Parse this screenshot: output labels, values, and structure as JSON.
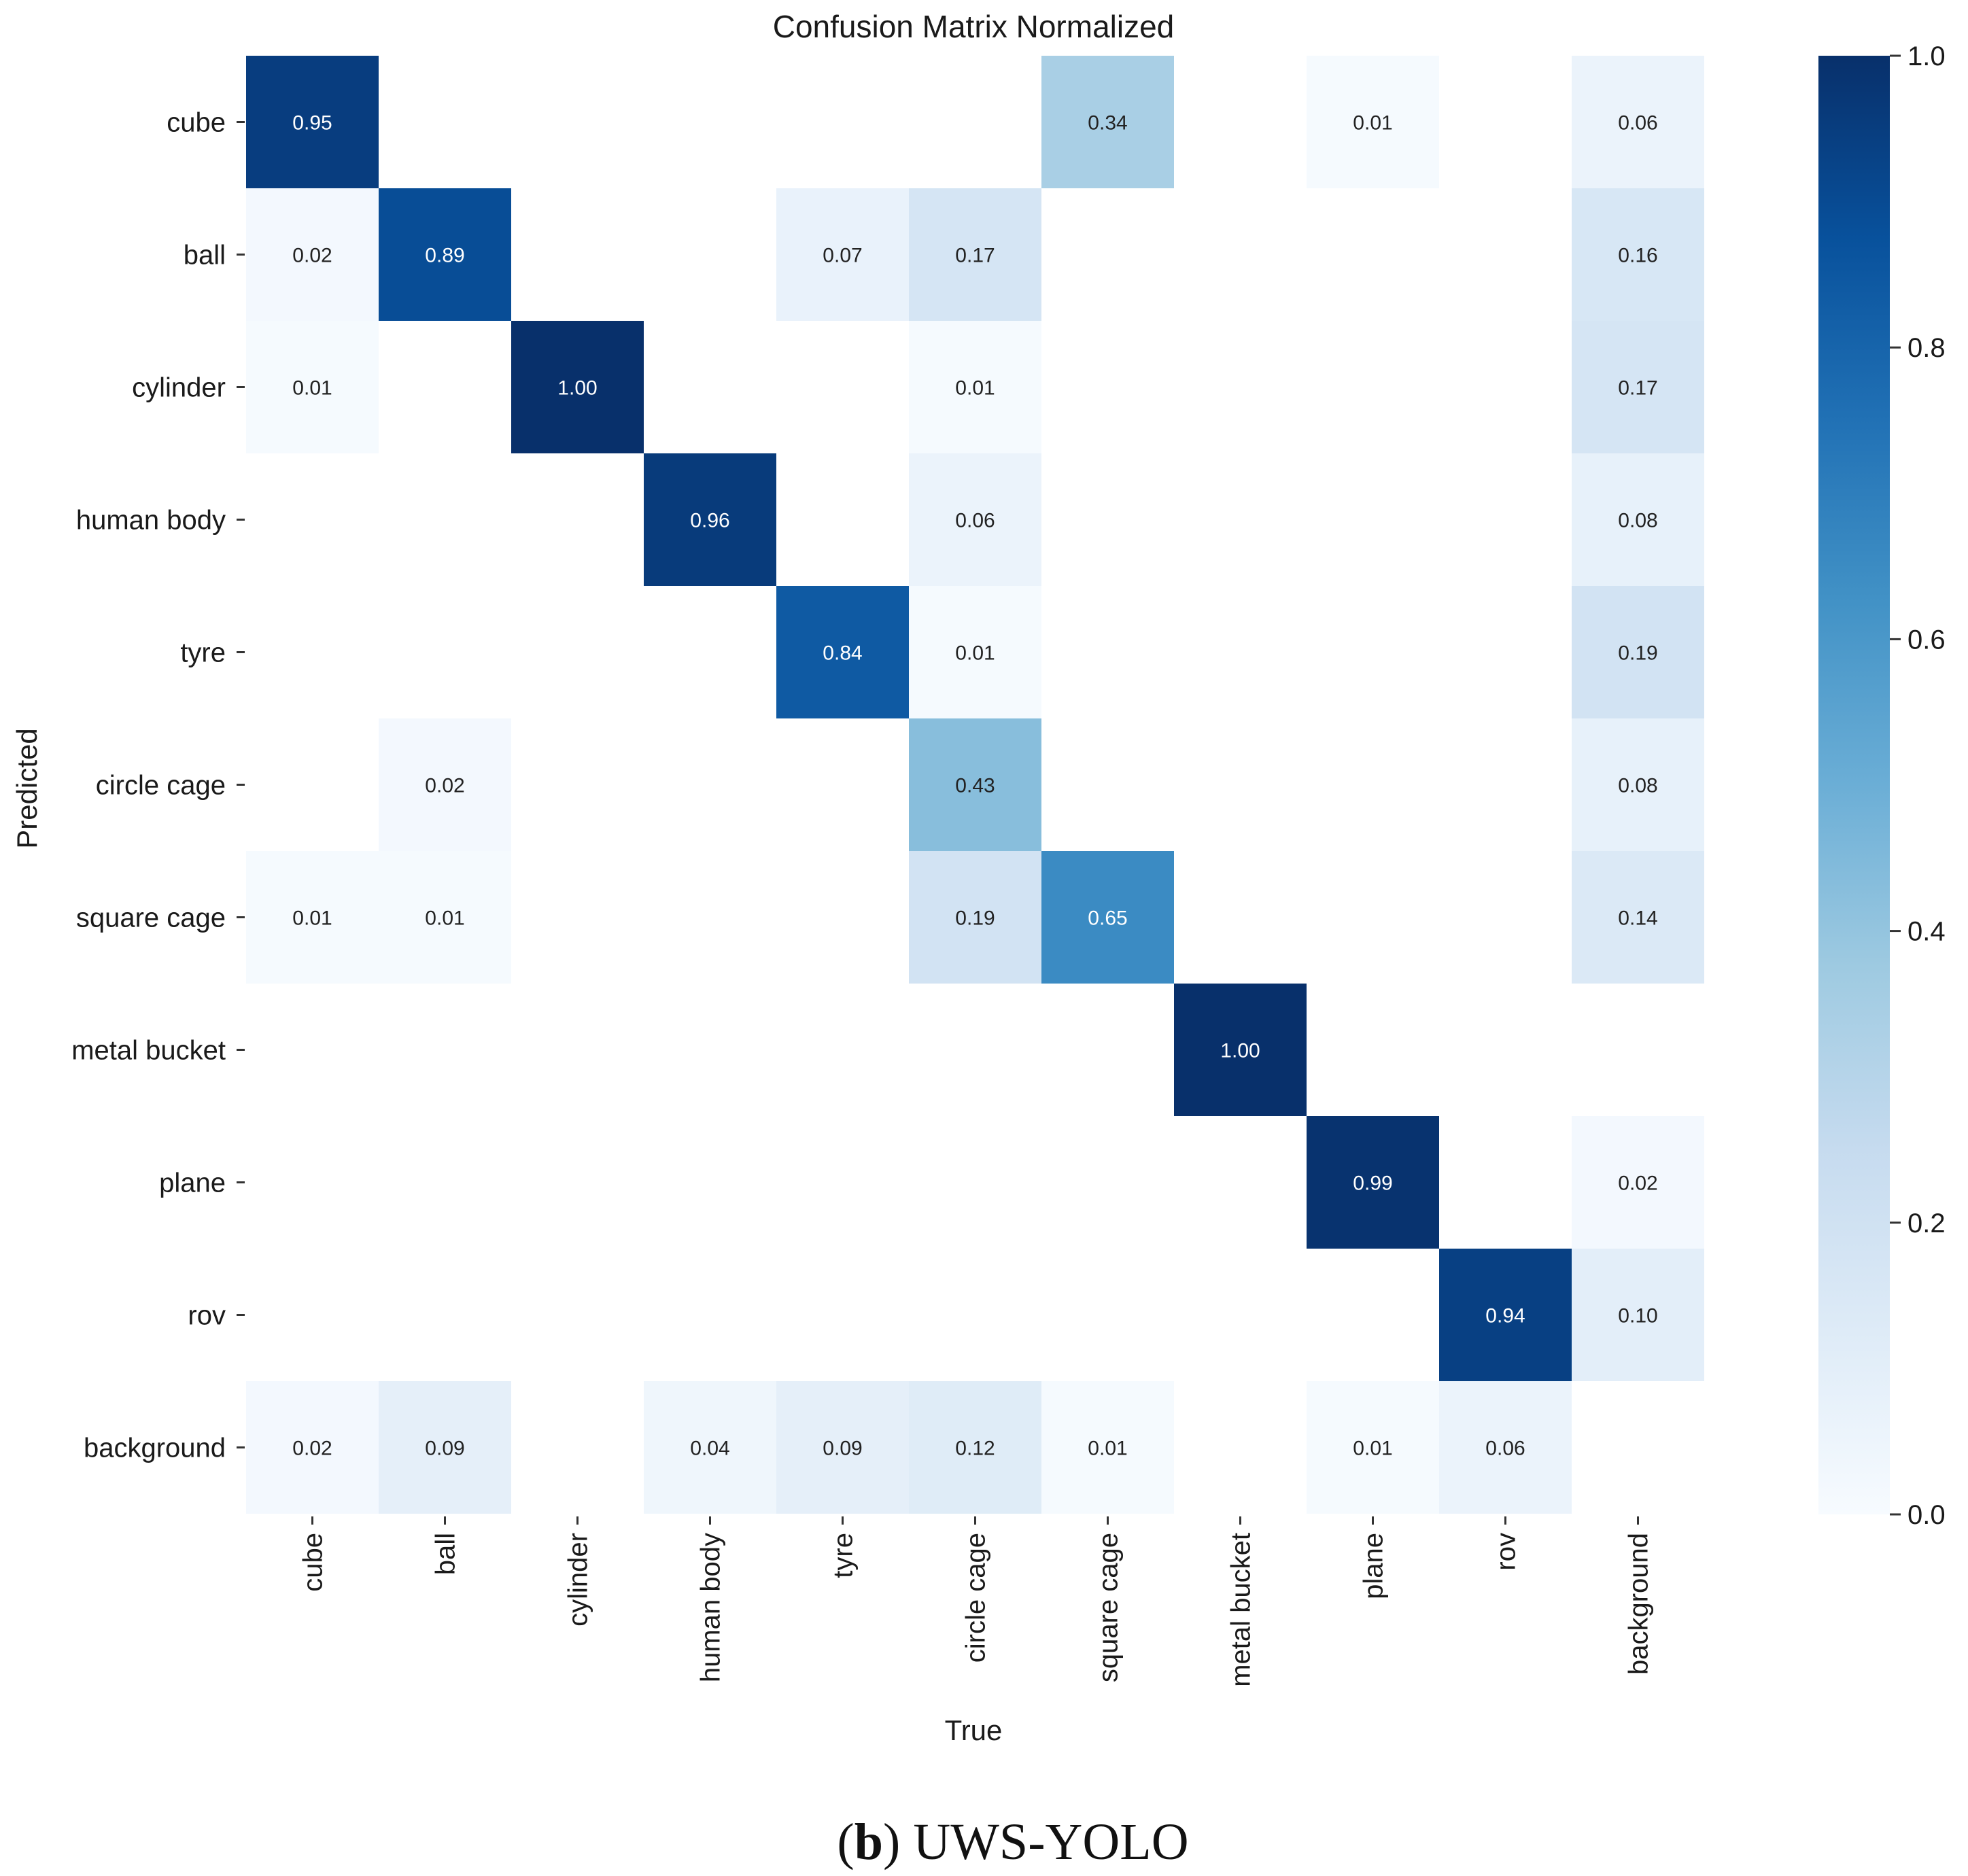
{
  "chart_data": {
    "type": "heatmap",
    "title": "Confusion Matrix Normalized",
    "xlabel": "True",
    "ylabel": "Predicted",
    "x_categories": [
      "cube",
      "ball",
      "cylinder",
      "human body",
      "tyre",
      "circle cage",
      "square cage",
      "metal bucket",
      "plane",
      "rov",
      "background"
    ],
    "y_categories": [
      "cube",
      "ball",
      "cylinder",
      "human body",
      "tyre",
      "circle cage",
      "square cage",
      "metal bucket",
      "plane",
      "rov",
      "background"
    ],
    "values": [
      [
        0.95,
        null,
        null,
        null,
        null,
        null,
        0.34,
        null,
        0.01,
        null,
        0.06
      ],
      [
        0.02,
        0.89,
        null,
        null,
        0.07,
        0.17,
        null,
        null,
        null,
        null,
        0.16
      ],
      [
        0.01,
        null,
        1.0,
        null,
        null,
        0.01,
        null,
        null,
        null,
        null,
        0.17
      ],
      [
        null,
        null,
        null,
        0.96,
        null,
        0.06,
        null,
        null,
        null,
        null,
        0.08
      ],
      [
        null,
        null,
        null,
        null,
        0.84,
        0.01,
        null,
        null,
        null,
        null,
        0.19
      ],
      [
        null,
        0.02,
        null,
        null,
        null,
        0.43,
        null,
        null,
        null,
        null,
        0.08
      ],
      [
        0.01,
        0.01,
        null,
        null,
        null,
        0.19,
        0.65,
        null,
        null,
        null,
        0.14
      ],
      [
        null,
        null,
        null,
        null,
        null,
        null,
        null,
        1.0,
        null,
        null,
        null
      ],
      [
        null,
        null,
        null,
        null,
        null,
        null,
        null,
        null,
        0.99,
        null,
        0.02
      ],
      [
        null,
        null,
        null,
        null,
        null,
        null,
        null,
        null,
        null,
        0.94,
        0.1
      ],
      [
        0.02,
        0.09,
        null,
        0.04,
        0.09,
        0.12,
        0.01,
        null,
        0.01,
        0.06,
        null
      ]
    ],
    "colorbar": {
      "range": [
        0.0,
        1.0
      ],
      "ticks": [
        "0.0",
        "0.2",
        "0.4",
        "0.6",
        "0.8",
        "1.0"
      ],
      "colors": [
        "#f7fbff",
        "#deebf7",
        "#c6dbef",
        "#9ecae1",
        "#6baed6",
        "#4292c6",
        "#2171b5",
        "#08519c",
        "#08306b"
      ]
    },
    "grid": false
  },
  "caption": {
    "letter": "b",
    "text": "UWS-YOLO"
  }
}
